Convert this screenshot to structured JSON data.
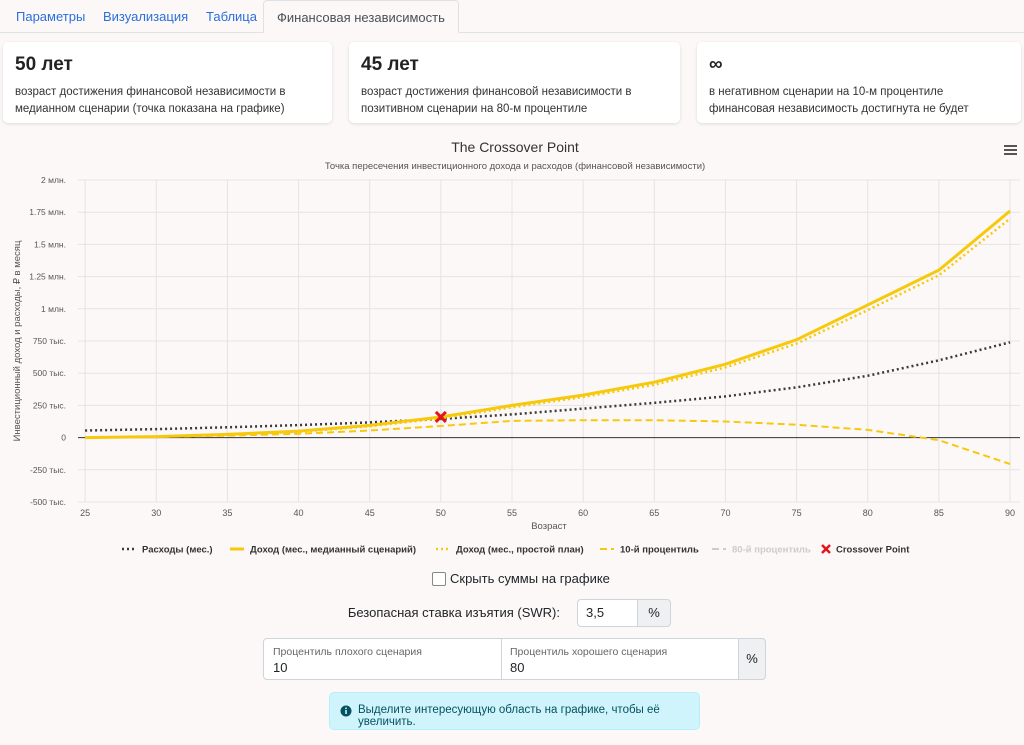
{
  "tabs": [
    "Параметры",
    "Визуализация",
    "Таблица",
    "Финансовая независимость"
  ],
  "active_tab": 3,
  "cards": [
    {
      "value": "50 лет",
      "text": "возраст достижения финансовой независимости в медианном сценарии (точка показана на графике)"
    },
    {
      "value": "45 лет",
      "text": "возраст достижения финансовой независимости в позитивном сценарии на 80-м процентиле"
    },
    {
      "value": "∞",
      "text": "в негативном сценарии на 10-м процентиле финансовая независимость достигнута не будет"
    }
  ],
  "chart_data": {
    "type": "line",
    "title": "The Crossover Point",
    "subtitle": "Точка пересечения инвестиционного дохода и расходов (финансовой независимости)",
    "x_label": "Возраст",
    "y_label": "Инвестиционный доход и расходы, ₽ в месяц",
    "x": [
      25,
      30,
      35,
      40,
      45,
      50,
      55,
      60,
      65,
      70,
      75,
      80,
      85,
      90
    ],
    "xlim": [
      24.5,
      90.7
    ],
    "xticks": [
      25,
      30,
      35,
      40,
      45,
      50,
      55,
      60,
      65,
      70,
      75,
      80,
      85,
      90
    ],
    "ylim": [
      -500000,
      2000000
    ],
    "yticks": [
      {
        "value": -500000,
        "label": "-500 тыс."
      },
      {
        "value": -250000,
        "label": "-250 тыс."
      },
      0,
      {
        "value": 250000,
        "label": "250 тыс."
      },
      {
        "value": 500000,
        "label": "500 тыс."
      },
      {
        "value": 750000,
        "label": "750 тыс."
      },
      {
        "value": 1000000,
        "label": "1 млн."
      },
      {
        "value": 1250000,
        "label": "1.25 млн."
      },
      {
        "value": 1500000,
        "label": "1.5 млн."
      },
      {
        "value": 1750000,
        "label": "1.75 млн."
      },
      {
        "value": 2000000,
        "label": "2 млн."
      }
    ],
    "grid": true,
    "series": [
      {
        "name": "Расходы (мес.)",
        "color": "#3a3a3a",
        "dash": "dot",
        "visible": true,
        "values": [
          55000,
          66000,
          80000,
          97000,
          118000,
          145000,
          180000,
          225000,
          270000,
          320000,
          390000,
          480000,
          600000,
          740000
        ]
      },
      {
        "name": "Доход (мес., медианный сценарий)",
        "color": "#f6c90e",
        "dash": "solid",
        "visible": true,
        "values": [
          0,
          8000,
          25000,
          50000,
          95000,
          160000,
          250000,
          330000,
          430000,
          570000,
          760000,
          1030000,
          1300000,
          1760000
        ]
      },
      {
        "name": "Доход (мес., простой план)",
        "color": "#f6c90e",
        "dash": "dot",
        "visible": true,
        "values": [
          0,
          7000,
          22000,
          45000,
          88000,
          150000,
          235000,
          315000,
          410000,
          545000,
          730000,
          990000,
          1260000,
          1700000
        ]
      },
      {
        "name": "10-й процентиль",
        "color": "#f6c90e",
        "dash": "dash",
        "visible": true,
        "values": [
          0,
          5000,
          15000,
          30000,
          55000,
          90000,
          130000,
          135000,
          135000,
          125000,
          100000,
          60000,
          -20000,
          -205000
        ]
      },
      {
        "name": "80-й процентиль",
        "color": "#f6c90e",
        "dash": "dash",
        "visible": false
      }
    ],
    "crossover": {
      "name": "Crossover Point",
      "x": 50,
      "value": 160000,
      "color": "#e3151a"
    }
  },
  "controls": {
    "hide_sums": "Скрыть суммы на графике",
    "swr_label": "Безопасная ставка изъятия (SWR):",
    "swr_value": "3,5",
    "swr_unit": "%",
    "bad_label": "Процентиль плохого сценария",
    "bad_value": "10",
    "good_label": "Процентиль хорошего сценария",
    "good_value": "80",
    "pct_unit": "%"
  },
  "alert": "Выделите интересующую область на графике, чтобы её увеличить."
}
